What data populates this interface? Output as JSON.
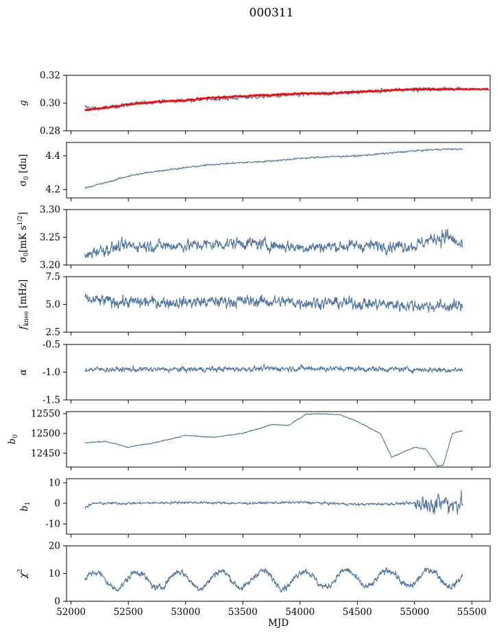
{
  "figure_title": "000311",
  "colors": {
    "series": "#4c72a0",
    "model": "#ff0000"
  },
  "chart_data": [
    {
      "type": "line",
      "id": "g",
      "ylabel": "g",
      "xlabel": "",
      "ylim": [
        0.28,
        0.32
      ],
      "yticks": [
        "0.28",
        "0.30",
        "0.32"
      ],
      "ytick_values": [
        0.28,
        0.3,
        0.32
      ],
      "xlim": [
        51960,
        55660
      ],
      "series": [
        {
          "name": "g",
          "x": [
            52120,
            52250,
            52500,
            52750,
            53000,
            53250,
            53500,
            53750,
            54000,
            54250,
            54500,
            54750,
            55000,
            55250,
            55420
          ],
          "values": [
            0.297,
            0.296,
            0.299,
            0.301,
            0.302,
            0.303,
            0.304,
            0.305,
            0.306,
            0.307,
            0.308,
            0.309,
            0.31,
            0.31,
            0.311
          ],
          "noise": 0.0012
        },
        {
          "name": "g fit",
          "x": [
            52120,
            52250,
            52500,
            52750,
            53000,
            53250,
            53500,
            53750,
            54000,
            54250,
            54500,
            54750,
            55000,
            55250,
            55650
          ],
          "values": [
            0.295,
            0.296,
            0.299,
            0.301,
            0.302,
            0.304,
            0.305,
            0.306,
            0.307,
            0.307,
            0.308,
            0.309,
            0.31,
            0.31,
            0.31
          ],
          "noise": 0.0004,
          "color_key": "model",
          "width": 2.2
        }
      ]
    },
    {
      "type": "line",
      "id": "sigma0",
      "ylabel": "σ0 [du]",
      "ylim": [
        4.15,
        4.48
      ],
      "yticks": [
        "4.2",
        "4.4"
      ],
      "ytick_values": [
        4.2,
        4.4
      ],
      "xlim": [
        51960,
        55660
      ],
      "series": [
        {
          "name": "sigma0",
          "x": [
            52120,
            52300,
            52500,
            52750,
            53000,
            53250,
            53500,
            53750,
            54000,
            54250,
            54500,
            54750,
            55000,
            55250,
            55420
          ],
          "values": [
            4.21,
            4.24,
            4.28,
            4.31,
            4.33,
            4.35,
            4.36,
            4.37,
            4.385,
            4.395,
            4.4,
            4.415,
            4.43,
            4.44,
            4.44
          ],
          "noise": 0.004
        }
      ]
    },
    {
      "type": "line",
      "id": "sigma0_mK",
      "ylabel": "σ0[mK s^1/2]",
      "ylim": [
        3.2,
        3.3
      ],
      "yticks": [
        "3.20",
        "3.25",
        "3.30"
      ],
      "ytick_values": [
        3.2,
        3.25,
        3.3
      ],
      "xlim": [
        51960,
        55660
      ],
      "series": [
        {
          "name": "sigma0_mK",
          "x": [
            52120,
            52200,
            52500,
            53000,
            53500,
            54000,
            54500,
            55000,
            55200,
            55300,
            55420
          ],
          "values": [
            3.212,
            3.225,
            3.235,
            3.235,
            3.24,
            3.232,
            3.235,
            3.235,
            3.25,
            3.25,
            3.232
          ],
          "noise": 0.009
        }
      ]
    },
    {
      "type": "line",
      "id": "fknee",
      "ylabel": "f_knee [mHz]",
      "ylim": [
        2.5,
        7.5
      ],
      "yticks": [
        "2.5",
        "5.0",
        "7.5"
      ],
      "ytick_values": [
        2.5,
        5.0,
        7.5
      ],
      "xlim": [
        51960,
        55660
      ],
      "series": [
        {
          "name": "fknee",
          "x": [
            52120,
            52500,
            53000,
            53500,
            54000,
            54500,
            55000,
            55420
          ],
          "values": [
            5.4,
            5.2,
            5.2,
            5.3,
            5.2,
            5.1,
            4.9,
            4.8
          ],
          "noise": 0.45
        }
      ]
    },
    {
      "type": "line",
      "id": "alpha",
      "ylabel": "α",
      "ylim": [
        -1.5,
        -0.5
      ],
      "yticks": [
        "-1.5",
        "-1.0",
        "-0.5"
      ],
      "ytick_values": [
        -1.5,
        -1.0,
        -0.5
      ],
      "xlim": [
        51960,
        55660
      ],
      "series": [
        {
          "name": "alpha",
          "x": [
            52120,
            53000,
            54000,
            55000,
            55420
          ],
          "values": [
            -0.95,
            -0.95,
            -0.93,
            -0.95,
            -0.96
          ],
          "noise": 0.04
        }
      ]
    },
    {
      "type": "line",
      "id": "b0",
      "ylabel": "b0",
      "ylim": [
        12415,
        12555
      ],
      "yticks": [
        "12450",
        "12500",
        "12550"
      ],
      "ytick_values": [
        12450,
        12500,
        12550
      ],
      "xlim": [
        51960,
        55660
      ],
      "series": [
        {
          "name": "b0",
          "x": [
            52120,
            52300,
            52500,
            52750,
            53000,
            53250,
            53500,
            53750,
            53900,
            54050,
            54150,
            54350,
            54500,
            54700,
            54800,
            55000,
            55100,
            55200,
            55250,
            55330,
            55420
          ],
          "values": [
            12476,
            12480,
            12465,
            12478,
            12495,
            12490,
            12500,
            12522,
            12520,
            12548,
            12550,
            12547,
            12530,
            12500,
            12440,
            12465,
            12460,
            12418,
            12420,
            12500,
            12507
          ],
          "noise": 1.0
        }
      ]
    },
    {
      "type": "line",
      "id": "b1",
      "ylabel": "b1",
      "ylim": [
        -15,
        12
      ],
      "yticks": [
        "-10",
        "0",
        "10"
      ],
      "ytick_values": [
        -10,
        0,
        10
      ],
      "xlim": [
        51960,
        55660
      ],
      "series": [
        {
          "name": "b1",
          "x": [
            52120,
            52200,
            52500,
            53000,
            53500,
            54000,
            54500,
            55000,
            55420
          ],
          "values": [
            -2.0,
            0.0,
            0.0,
            0.5,
            0.0,
            0.5,
            -0.5,
            0.0,
            0.0
          ],
          "noise": 0.5
        }
      ]
    },
    {
      "type": "line",
      "id": "chi2",
      "ylabel": "χ2",
      "xlabel": "MJD",
      "ylim": [
        0,
        20
      ],
      "yticks": [
        "0",
        "10",
        "20"
      ],
      "ytick_values": [
        0,
        10,
        20
      ],
      "xlim": [
        51960,
        55660
      ],
      "xticks": [
        "52000",
        "52500",
        "53000",
        "53500",
        "54000",
        "54500",
        "55000",
        "55500"
      ],
      "xtick_values": [
        52000,
        52500,
        53000,
        53500,
        54000,
        54500,
        55000,
        55500
      ],
      "series": [
        {
          "name": "chi2",
          "x": [
            52120,
            55420
          ],
          "values": [
            7.5,
            8.5
          ],
          "noise": 1.0,
          "seasonal_amplitude": 3.0,
          "seasonal_period_days": 365
        }
      ]
    }
  ]
}
